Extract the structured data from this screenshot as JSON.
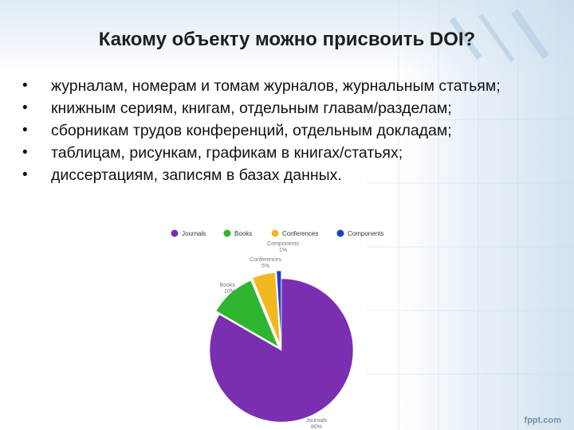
{
  "slide": {
    "title": "Какому объекту можно присвоить DOI?",
    "bullets": [
      "журналам, номерам и томам журналов, журнальным статьям;",
      "книжным сериям, книгам, отдельным главам/разделам;",
      "сборникам трудов конференций, отдельным докладам;",
      "таблицам, рисункам, графикам в книгах/статьях;",
      "диссертациям, записям в базах данных."
    ],
    "logo": "fppt.com"
  },
  "chart_data": {
    "type": "pie",
    "legend_position": "top",
    "series": [
      {
        "name": "Journals",
        "value": 80,
        "label": "Journals",
        "pct": "80%",
        "color": "#7a2fb0"
      },
      {
        "name": "Books",
        "value": 10,
        "label": "Books",
        "pct": "10%",
        "color": "#2fb52f"
      },
      {
        "name": "Conferences",
        "value": 5,
        "label": "Conferences",
        "pct": "5%",
        "color": "#f3b820"
      },
      {
        "name": "Components",
        "value": 1,
        "label": "Components",
        "pct": "1%",
        "color": "#1c3fc9"
      }
    ]
  }
}
